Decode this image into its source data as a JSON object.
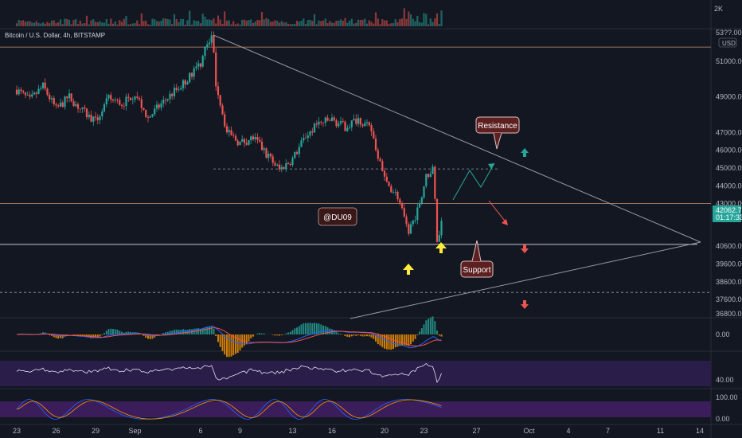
{
  "chart_data": {
    "type": "candlestick",
    "title": "Bitcoin / U.S. Dollar, 4h, BITSTAMP",
    "currency": "USD",
    "volume_axis_label": "2K",
    "last_price": "42062.75",
    "countdown": "01:17:33",
    "top_price_label": "53??.00",
    "y_axis": {
      "range": [
        36200,
        53300
      ],
      "ticks": [
        {
          "label": "51000.00",
          "value": 51000
        },
        {
          "label": "49000.00",
          "value": 49000
        },
        {
          "label": "47000.00",
          "value": 47000
        },
        {
          "label": "46000.00",
          "value": 46000
        },
        {
          "label": "45000.00",
          "value": 45000
        },
        {
          "label": "44000.00",
          "value": 44000
        },
        {
          "label": "43000.00",
          "value": 43000
        },
        {
          "label": "40600.00",
          "value": 40600
        },
        {
          "label": "39600.00",
          "value": 39600
        },
        {
          "label": "38600.00",
          "value": 38600
        },
        {
          "label": "37600.00",
          "value": 37600
        },
        {
          "label": "36800.00",
          "value": 36800
        }
      ]
    },
    "x_axis": {
      "ticks": [
        {
          "label": "23",
          "day": 0
        },
        {
          "label": "26",
          "day": 3
        },
        {
          "label": "29",
          "day": 6
        },
        {
          "label": "Sep",
          "day": 9
        },
        {
          "label": "6",
          "day": 14
        },
        {
          "label": "9",
          "day": 17
        },
        {
          "label": "13",
          "day": 21
        },
        {
          "label": "16",
          "day": 24
        },
        {
          "label": "20",
          "day": 28
        },
        {
          "label": "23",
          "day": 31
        },
        {
          "label": "27",
          "day": 35
        },
        {
          "label": "Oct",
          "day": 39
        },
        {
          "label": "4",
          "day": 42
        },
        {
          "label": "7",
          "day": 45
        },
        {
          "label": "11",
          "day": 49
        },
        {
          "label": "14",
          "day": 52
        }
      ]
    },
    "price_path": [
      [
        0,
        49400
      ],
      [
        1,
        48800
      ],
      [
        2,
        49600
      ],
      [
        3,
        48300
      ],
      [
        4,
        49000
      ],
      [
        5,
        48200
      ],
      [
        6,
        47600
      ],
      [
        7,
        48900
      ],
      [
        8,
        48600
      ],
      [
        9,
        49200
      ],
      [
        10,
        47800
      ],
      [
        11,
        48600
      ],
      [
        12,
        49300
      ],
      [
        13,
        50000
      ],
      [
        14,
        50900
      ],
      [
        14.5,
        52000
      ],
      [
        14.9,
        52600
      ],
      [
        15.1,
        50000
      ],
      [
        16,
        47000
      ],
      [
        17,
        46400
      ],
      [
        18,
        46700
      ],
      [
        19,
        45800
      ],
      [
        20,
        44900
      ],
      [
        21,
        45500
      ],
      [
        22,
        46800
      ],
      [
        23,
        47500
      ],
      [
        24,
        47700
      ],
      [
        25,
        47300
      ],
      [
        26,
        47800
      ],
      [
        27,
        47100
      ],
      [
        28,
        44300
      ],
      [
        29,
        43400
      ],
      [
        29.8,
        41400
      ],
      [
        30.5,
        42600
      ],
      [
        31.2,
        44600
      ],
      [
        31.7,
        44900
      ],
      [
        32,
        41000
      ],
      [
        32.4,
        42100
      ]
    ],
    "levels": [
      {
        "name": "upper-resistance",
        "value": 51800,
        "color": "#e8a87c"
      },
      {
        "name": "dashed-resistance",
        "value": 44950,
        "color": "#b2b5be"
      },
      {
        "name": "mid-resistance",
        "value": 43000,
        "color": "#e8a87c"
      },
      {
        "name": "support",
        "value": 40700,
        "color": "#e0e3eb"
      },
      {
        "name": "lower-dashed",
        "value": 38000,
        "color": "#b2b5be"
      }
    ],
    "annotations": [
      {
        "name": "watermark",
        "text": "@DU09"
      },
      {
        "name": "resistance-label",
        "text": "Resistance"
      },
      {
        "name": "support-label",
        "text": "Support"
      }
    ],
    "indicators": {
      "macd": {
        "axis_label": "0.00"
      },
      "rsi": {
        "axis_label": "40.00"
      },
      "stoch_rsi": {
        "axis_labels": [
          "100.00",
          "0.00"
        ]
      }
    },
    "colors": {
      "up": "#26a69a",
      "down": "#ef5350",
      "background": "#131722",
      "text": "#b2b5be"
    }
  }
}
